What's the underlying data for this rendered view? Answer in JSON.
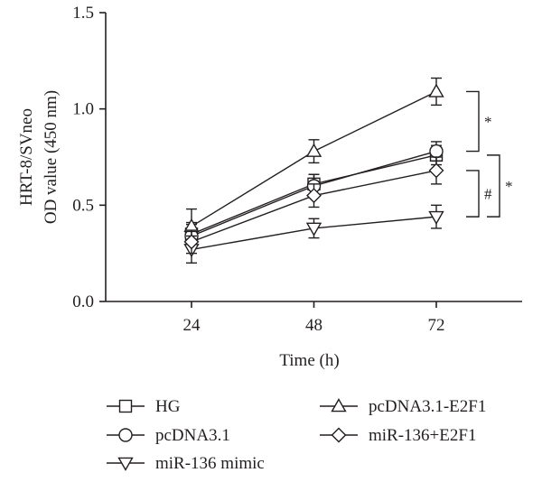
{
  "chart_data": {
    "type": "line",
    "title": "",
    "xlabel": "Time (h)",
    "ylabel_lines": [
      "HRT-8/SVneo",
      "OD value (450 nm)"
    ],
    "x": [
      24,
      48,
      72
    ],
    "x_tick_labels": [
      "24",
      "48",
      "72"
    ],
    "ylim": [
      0,
      1.5
    ],
    "y_ticks": [
      0,
      0.5,
      1.0,
      1.5
    ],
    "y_tick_labels": [
      "0.0",
      "0.5",
      "1.0",
      "1.5"
    ],
    "grid": false,
    "legend_position": "bottom",
    "series": [
      {
        "name": "HG",
        "marker": "square",
        "values": [
          0.35,
          0.61,
          0.76
        ],
        "errors": [
          0.06,
          0.05,
          0.05
        ]
      },
      {
        "name": "pcDNA3.1",
        "marker": "circle",
        "values": [
          0.34,
          0.6,
          0.78
        ],
        "errors": [
          0.06,
          0.06,
          0.05
        ]
      },
      {
        "name": "miR-136 mimic",
        "marker": "triangle-down",
        "values": [
          0.27,
          0.38,
          0.44
        ],
        "errors": [
          0.07,
          0.05,
          0.06
        ]
      },
      {
        "name": "pcDNA3.1-E2F1",
        "marker": "triangle-up",
        "values": [
          0.39,
          0.78,
          1.09
        ],
        "errors": [
          0.09,
          0.06,
          0.07
        ]
      },
      {
        "name": "miR-136+E2F1",
        "marker": "diamond",
        "values": [
          0.31,
          0.55,
          0.68
        ],
        "errors": [
          0.06,
          0.06,
          0.07
        ]
      }
    ],
    "annotations": [
      {
        "text": "*",
        "x": 72,
        "from": 0.78,
        "to": 1.09
      },
      {
        "text": "#",
        "x": 72,
        "from": 0.44,
        "to": 0.68
      },
      {
        "text": "*",
        "x": 72,
        "from": 0.44,
        "to": 0.76
      }
    ]
  }
}
